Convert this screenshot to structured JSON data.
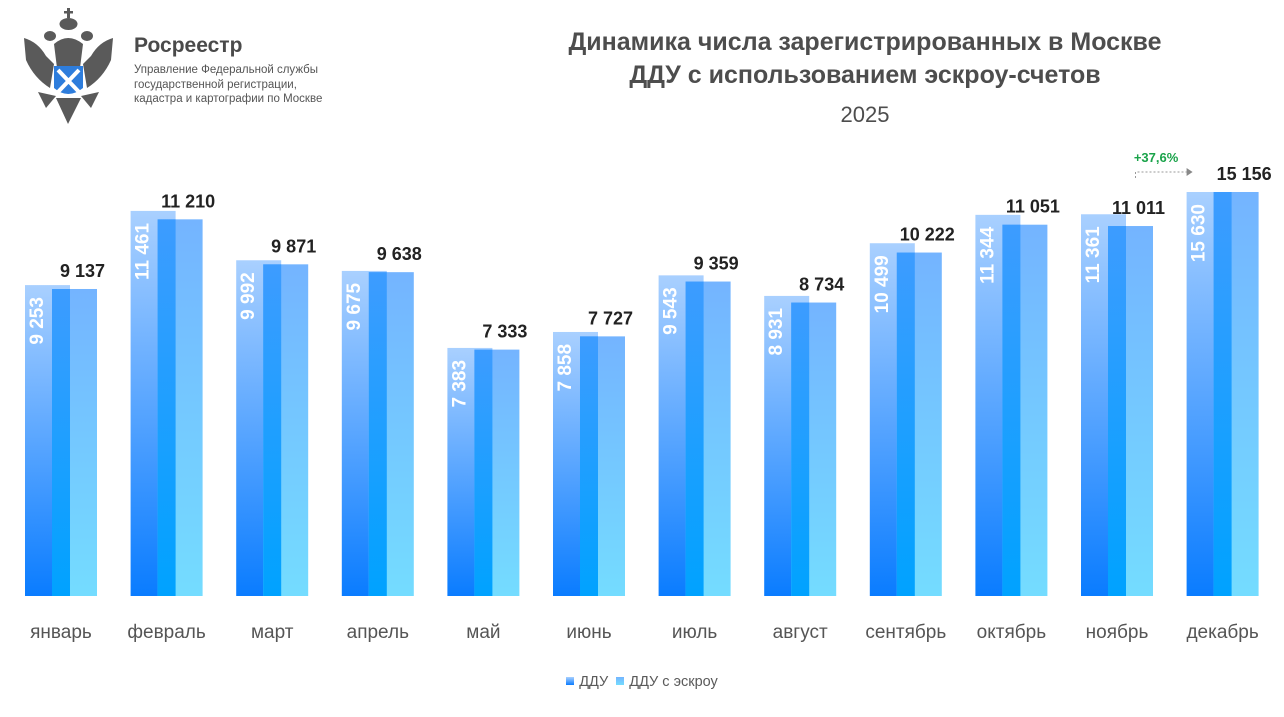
{
  "header": {
    "brand": "Росреестр",
    "org_lines": [
      "Управление Федеральной службы",
      "государственной регистрации,",
      "кадастра и картографии по Москве"
    ],
    "title_lines": [
      "Динамика числа зарегистрированных в Москве",
      "ДДУ с использованием эскроу-счетов"
    ],
    "year": "2025"
  },
  "colors": {
    "ddu_bottom": "#0a7cff",
    "ddu_top": "#a9d0ff",
    "escrow_bottom": "#74dcff",
    "escrow_top": "#74b4ff",
    "overlap": "#3d9cff",
    "text_dark": "#222222",
    "growth": "#1aa34a"
  },
  "chart_data": {
    "type": "bar",
    "title": "Динамика числа зарегистрированных в Москве ДДУ с использованием эскроу-счетов",
    "subtitle": "2025",
    "xlabel": "",
    "ylabel": "",
    "grid": false,
    "legend_position": "bottom",
    "categories": [
      "январь",
      "февраль",
      "март",
      "апрель",
      "май",
      "июнь",
      "июль",
      "август",
      "сентябрь",
      "октябрь",
      "ноябрь",
      "декабрь"
    ],
    "series": [
      {
        "name": "ДДУ",
        "values": [
          9253,
          11461,
          9992,
          9675,
          7383,
          7858,
          9543,
          8931,
          10499,
          11344,
          11361,
          15630
        ],
        "labels": [
          "9 253",
          "11 461",
          "9 992",
          "9 675",
          "7 383",
          "7 858",
          "9 543",
          "8 931",
          "10 499",
          "11 344",
          "11 361",
          "15 630"
        ]
      },
      {
        "name": "ДДУ с эскроу",
        "values": [
          9137,
          11210,
          9871,
          9638,
          7333,
          7727,
          9359,
          8734,
          10222,
          11051,
          11011,
          15156
        ],
        "labels": [
          "9 137",
          "11 210",
          "9 871",
          "9 638",
          "7 333",
          "7 727",
          "9 359",
          "8 734",
          "10 222",
          "11 051",
          "11 011",
          "15 156"
        ]
      }
    ],
    "annotation": {
      "text": "+37,6%",
      "from": "ноябрь",
      "to": "декабрь",
      "series": "ДДУ с эскроу"
    }
  }
}
